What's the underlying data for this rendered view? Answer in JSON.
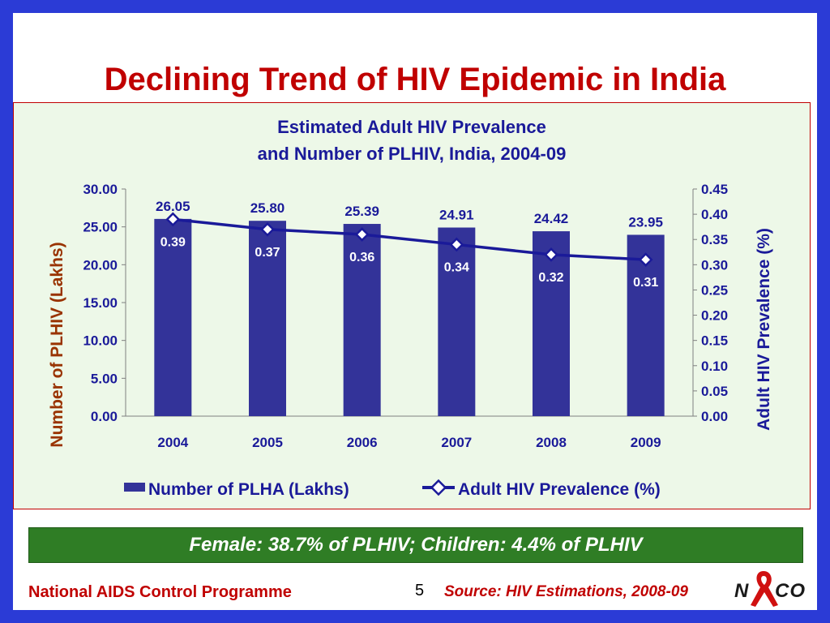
{
  "slide": {
    "title": "Declining Trend of HIV Epidemic in India",
    "banner": "Female: 38.7% of PLHIV; Children: 4.4% of PLHIV",
    "footer_left": "National AIDS Control Programme",
    "page_number": "5",
    "source": "Source: HIV Estimations, 2008-09",
    "logo_text": "NACO",
    "colors": {
      "frame": "#2b3bd6",
      "title": "#c00000",
      "chart_bg": "#edf8e8",
      "banner_bg": "#2f7d25",
      "bar": "#333399",
      "line": "#1a1a99",
      "left_axis_title": "#993300",
      "right_axis_title": "#1a1a99"
    }
  },
  "chart_data": {
    "type": "bar",
    "title_line1": "Estimated Adult HIV Prevalence",
    "title_line2": "and Number of PLHIV, India, 2004-09",
    "categories": [
      "2004",
      "2005",
      "2006",
      "2007",
      "2008",
      "2009"
    ],
    "series": [
      {
        "name": "Number of PLHA (Lakhs)",
        "type": "bar",
        "axis": "left",
        "values": [
          26.05,
          25.8,
          25.39,
          24.91,
          24.42,
          23.95
        ],
        "labels": [
          "26.05",
          "25.80",
          "25.39",
          "24.91",
          "24.42",
          "23.95"
        ]
      },
      {
        "name": "Adult HIV Prevalence (%)",
        "type": "line",
        "axis": "right",
        "values": [
          0.39,
          0.37,
          0.36,
          0.34,
          0.32,
          0.31
        ],
        "labels": [
          "0.39",
          "0.37",
          "0.36",
          "0.34",
          "0.32",
          "0.31"
        ]
      }
    ],
    "left_axis": {
      "label": "Number of PLHIV (Lakhs)",
      "ylim": [
        0,
        30
      ],
      "ticks": [
        "0.00",
        "5.00",
        "10.00",
        "15.00",
        "20.00",
        "25.00",
        "30.00"
      ]
    },
    "right_axis": {
      "label": "Adult HIV Prevalence (%)",
      "ylim": [
        0,
        0.45
      ],
      "ticks": [
        "0.00",
        "0.05",
        "0.10",
        "0.15",
        "0.20",
        "0.25",
        "0.30",
        "0.35",
        "0.40",
        "0.45"
      ]
    },
    "legend_position": "bottom",
    "grid": false
  }
}
